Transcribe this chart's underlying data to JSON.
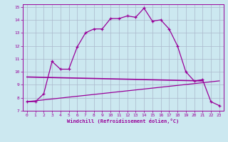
{
  "xlabel": "Windchill (Refroidissement éolien,°C)",
  "background_color": "#cce8f0",
  "line_color": "#990099",
  "grid_color": "#aab8cc",
  "xlim": [
    -0.5,
    23.5
  ],
  "ylim": [
    7,
    15.2
  ],
  "xticks": [
    0,
    1,
    2,
    3,
    4,
    5,
    6,
    7,
    8,
    9,
    10,
    11,
    12,
    13,
    14,
    15,
    16,
    17,
    18,
    19,
    20,
    21,
    22,
    23
  ],
  "yticks": [
    7,
    8,
    9,
    10,
    11,
    12,
    13,
    14,
    15
  ],
  "curve_main_x": [
    0,
    1,
    2,
    3,
    4,
    5,
    6,
    7,
    8,
    9,
    10,
    11,
    12,
    13,
    14,
    15,
    16,
    17,
    18,
    19,
    20,
    21,
    22,
    23
  ],
  "curve_main_y": [
    7.7,
    7.7,
    8.3,
    10.8,
    10.2,
    10.2,
    11.9,
    13.0,
    13.3,
    13.3,
    14.1,
    14.1,
    14.3,
    14.2,
    14.9,
    13.9,
    14.0,
    13.3,
    12.0,
    10.0,
    9.3,
    9.4,
    7.7,
    7.4
  ],
  "line1_x": [
    0,
    21
  ],
  "line1_y": [
    9.6,
    9.3
  ],
  "line2_x": [
    0,
    23
  ],
  "line2_y": [
    7.7,
    9.3
  ]
}
